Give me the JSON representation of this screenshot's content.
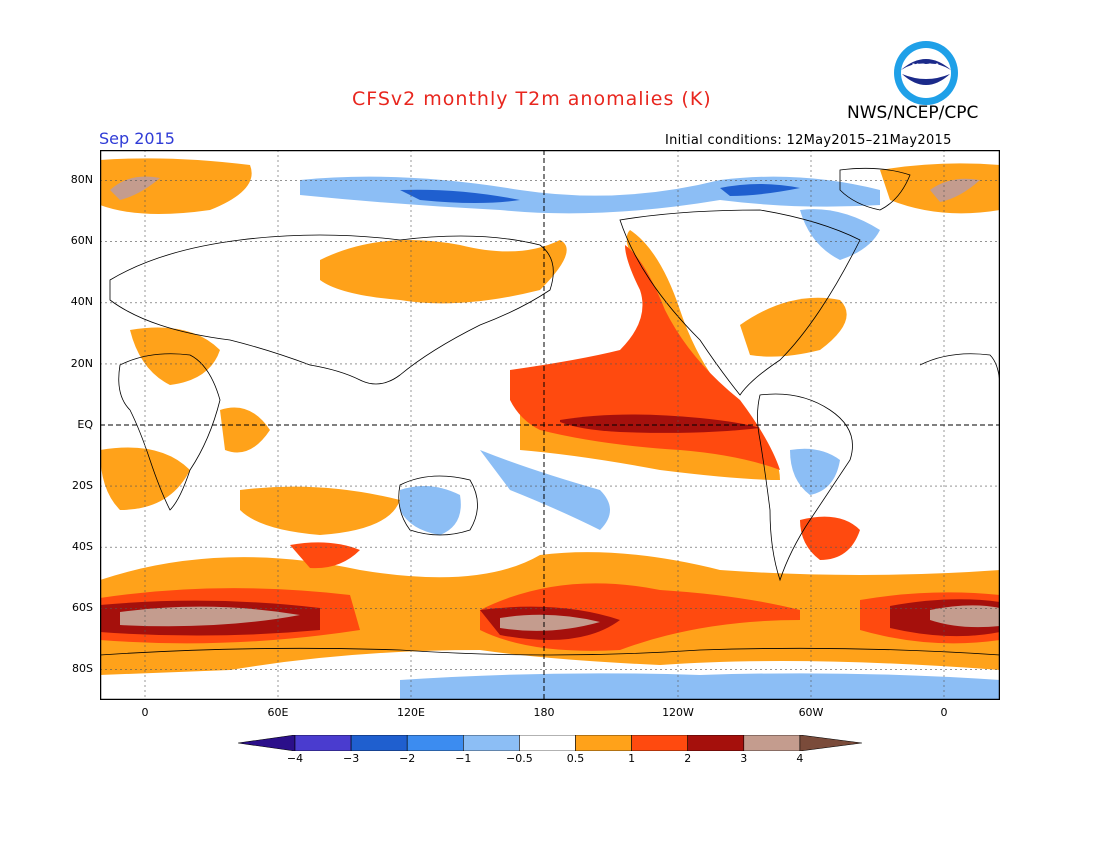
{
  "header": {
    "title": "CFSv2 monthly T2m anomalies (K)",
    "month": "Sep 2015",
    "initial_conditions": "Initial conditions: 12May2015–21May2015",
    "agency": "NWS/NCEP/CPC",
    "logo_text": "NOAA"
  },
  "map": {
    "projection": "equirectangular",
    "center_longitude": 180,
    "lat_range": [
      -90,
      90
    ],
    "lat_labels": [
      "80N",
      "60N",
      "40N",
      "20N",
      "EQ",
      "20S",
      "40S",
      "60S",
      "80S"
    ],
    "lon_labels": [
      "0",
      "60E",
      "120E",
      "180",
      "120W",
      "60W",
      "0"
    ],
    "highlighted_lines": [
      "equator",
      "dateline"
    ],
    "background_color": "#ffffff"
  },
  "colorbar": {
    "labels": [
      "−4",
      "−3",
      "−2",
      "−1",
      "−0.5",
      "0.5",
      "1",
      "2",
      "3",
      "4"
    ],
    "bins": [
      {
        "range": "< -4",
        "color": "#2b0f8a"
      },
      {
        "range": "-4 to -3",
        "color": "#4a3ccf"
      },
      {
        "range": "-3 to -2",
        "color": "#1f5fcf"
      },
      {
        "range": "-2 to -1",
        "color": "#3c8cf0"
      },
      {
        "range": "-1 to -0.5",
        "color": "#8cbef5"
      },
      {
        "range": "-0.5 to 0.5",
        "color": "#ffffff"
      },
      {
        "range": "0.5 to 1",
        "color": "#ffa21a"
      },
      {
        "range": "1 to 2",
        "color": "#ff4a0f"
      },
      {
        "range": "2 to 3",
        "color": "#a5100c"
      },
      {
        "range": "3 to 4",
        "color": "#c49c8e"
      },
      {
        "range": "> 4",
        "color": "#7a4b3a"
      }
    ]
  }
}
